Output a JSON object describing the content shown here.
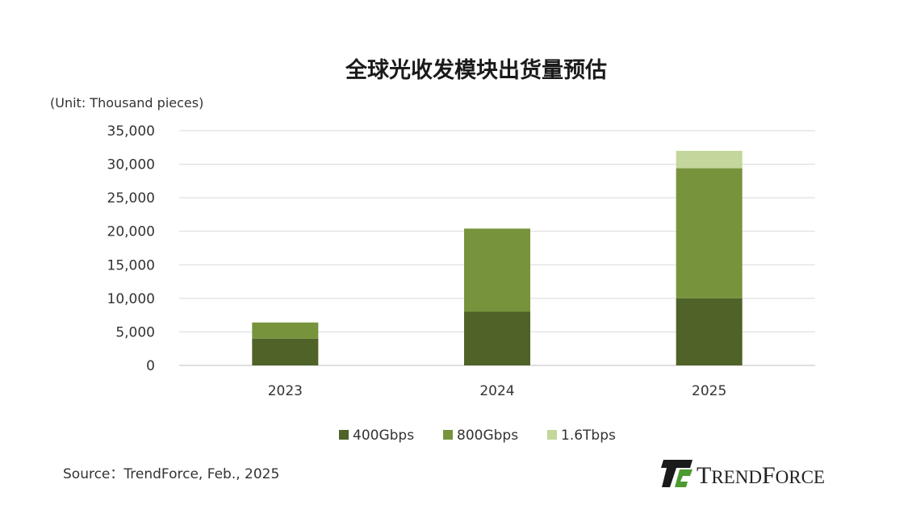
{
  "chart_data": {
    "type": "bar",
    "stacked": true,
    "title": "全球光收发模块出货量预估",
    "unit_label": "(Unit: Thousand pieces)",
    "categories": [
      "2023",
      "2024",
      "2025"
    ],
    "series": [
      {
        "name": "400Gbps",
        "color": "#4f6228",
        "values": [
          4000,
          8000,
          10000
        ]
      },
      {
        "name": "800Gbps",
        "color": "#77933c",
        "values": [
          2400,
          12400,
          19400
        ]
      },
      {
        "name": "1.6Tbps",
        "color": "#c3d69b",
        "values": [
          0,
          0,
          2600
        ]
      }
    ],
    "ylim": [
      0,
      35000
    ],
    "yticks": [
      0,
      5000,
      10000,
      15000,
      20000,
      25000,
      30000,
      35000
    ],
    "ytick_labels": [
      "0",
      "5,000",
      "10,000",
      "15,000",
      "20,000",
      "25,000",
      "30,000",
      "35,000"
    ],
    "grid": true,
    "legend_position": "bottom"
  },
  "footer": {
    "source": "Source：TrendForce, Feb., 2025",
    "brand_first": "T",
    "brand_rest": "REND",
    "brand_second": "F",
    "brand_rest2": "ORCE",
    "logo_icon": "trendforce-logo-icon"
  }
}
